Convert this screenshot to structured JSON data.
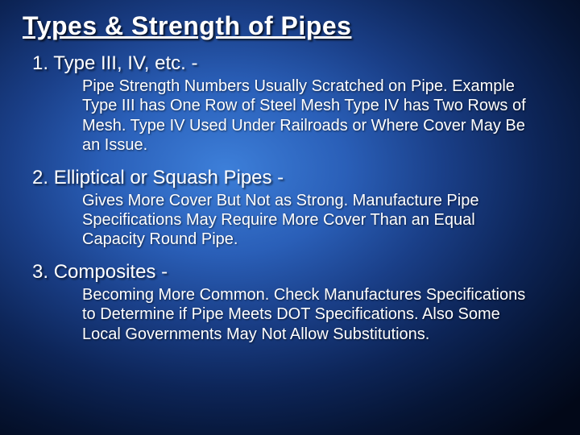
{
  "slide": {
    "title": "Types & Strength of Pipes",
    "background": {
      "gradient_center": "#3d7fd9",
      "gradient_mid": "#1a3f88",
      "gradient_edge": "#020818"
    },
    "title_style": {
      "fontsize": 32,
      "color": "#ffffff",
      "underline": true,
      "bold": true
    },
    "item_head_style": {
      "fontsize": 24,
      "color": "#ffffff"
    },
    "item_body_style": {
      "fontsize": 20,
      "color": "#ffffff"
    },
    "items": [
      {
        "head": "Type III, IV, etc. -",
        "body": "Pipe Strength Numbers Usually Scratched on Pipe.  Example Type III has One Row of Steel Mesh Type IV has Two Rows of Mesh.  Type IV Used Under Railroads or Where Cover May Be an Issue."
      },
      {
        "head": "Elliptical or Squash Pipes -",
        "body": "Gives More Cover But Not as Strong.  Manufacture Pipe Specifications May Require More Cover Than an Equal Capacity Round Pipe."
      },
      {
        "head": "Composites -",
        "body": "Becoming More Common.  Check Manufactures Specifications to Determine if Pipe Meets DOT Specifications.  Also Some Local Governments May Not Allow Substitutions."
      }
    ]
  }
}
